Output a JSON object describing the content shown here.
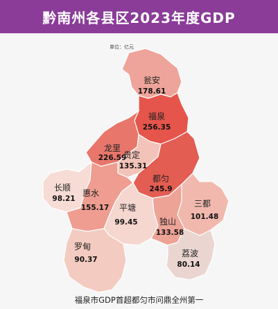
{
  "title": "黔南州各县区2023年度GDP",
  "unit_label": "单位：亿元",
  "footer": "福泉市GDP首超都匀市问鼎全州第一",
  "map_data": {
    "type": "choropleth",
    "unit": "亿元",
    "regions": [
      {
        "id": "wengan",
        "name": "瓮安",
        "value": 178.61,
        "value_label": "178.61",
        "color": "#eea49a"
      },
      {
        "id": "fuquan",
        "name": "福泉",
        "value": 256.35,
        "value_label": "256.35",
        "color": "#e5554b"
      },
      {
        "id": "longli",
        "name": "龙里",
        "value": 226.59,
        "value_label": "226.59",
        "color": "#e8766a"
      },
      {
        "id": "guiding",
        "name": "贵定",
        "value": 135.31,
        "value_label": "135.31",
        "color": "#f3c3b9"
      },
      {
        "id": "duyun",
        "name": "都匀",
        "value": 245.9,
        "value_label": "245.9",
        "color": "#e35d52"
      },
      {
        "id": "changshun",
        "name": "长顺",
        "value": 98.21,
        "value_label": "98.21",
        "color": "#f6dcd5"
      },
      {
        "id": "huishui",
        "name": "惠水",
        "value": 155.17,
        "value_label": "155.17",
        "color": "#ee9d90"
      },
      {
        "id": "pingtang",
        "name": "平塘",
        "value": 99.45,
        "value_label": "99.45",
        "color": "#f5d7cf"
      },
      {
        "id": "sandu",
        "name": "三都",
        "value": 101.48,
        "value_label": "101.48",
        "color": "#f1b9ae"
      },
      {
        "id": "dushan",
        "name": "独山",
        "value": 133.58,
        "value_label": "133.58",
        "color": "#eea397"
      },
      {
        "id": "luodian",
        "name": "罗甸",
        "value": 90.37,
        "value_label": "90.37",
        "color": "#f3cbc0"
      },
      {
        "id": "libo",
        "name": "荔波",
        "value": 80.14,
        "value_label": "80.14",
        "color": "#ead5d0"
      }
    ]
  }
}
